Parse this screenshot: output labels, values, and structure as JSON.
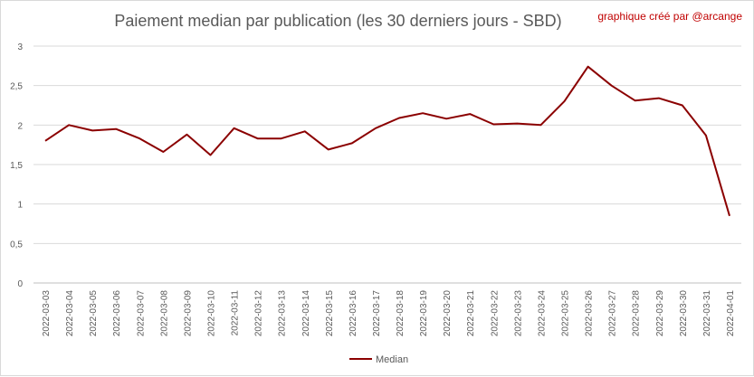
{
  "header": {
    "credit": "graphique créé par @arcange"
  },
  "chart_data": {
    "type": "line",
    "title": "Paiement median par publication (les 30 derniers jours - SBD)",
    "xlabel": "",
    "ylabel": "",
    "x": [
      "2022-03-03",
      "2022-03-04",
      "2022-03-05",
      "2022-03-06",
      "2022-03-07",
      "2022-03-08",
      "2022-03-09",
      "2022-03-10",
      "2022-03-11",
      "2022-03-12",
      "2022-03-13",
      "2022-03-14",
      "2022-03-15",
      "2022-03-16",
      "2022-03-17",
      "2022-03-18",
      "2022-03-19",
      "2022-03-20",
      "2022-03-21",
      "2022-03-22",
      "2022-03-23",
      "2022-03-24",
      "2022-03-25",
      "2022-03-26",
      "2022-03-27",
      "2022-03-28",
      "2022-03-29",
      "2022-03-30",
      "2022-03-31",
      "2022-04-01"
    ],
    "series": [
      {
        "name": "Median",
        "color": "#8b0000",
        "values": [
          1.8,
          2.0,
          1.93,
          1.95,
          1.83,
          1.66,
          1.88,
          1.62,
          1.96,
          1.83,
          1.83,
          1.92,
          1.69,
          1.77,
          1.96,
          2.09,
          2.15,
          2.08,
          2.14,
          2.01,
          2.02,
          2.0,
          2.3,
          2.74,
          2.5,
          2.31,
          2.34,
          2.25,
          1.87,
          0.85
        ]
      }
    ],
    "ylim": [
      0,
      3
    ],
    "yticks": [
      "0",
      "0,5",
      "1",
      "1,5",
      "2",
      "2,5",
      "3"
    ],
    "ytick_values": [
      0,
      0.5,
      1,
      1.5,
      2,
      2.5,
      3
    ],
    "grid": true,
    "legend": "bottom"
  }
}
